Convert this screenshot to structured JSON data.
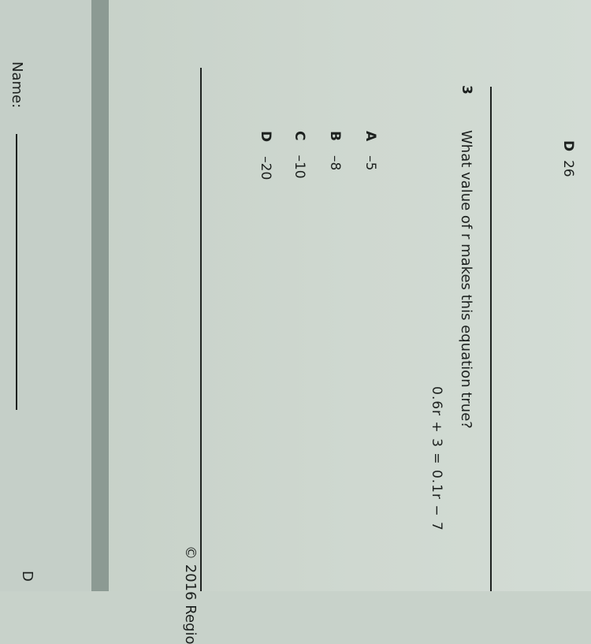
{
  "previous_question": {
    "letter": "D",
    "value": "26"
  },
  "question": {
    "number": "3",
    "text": "What value of r makes this equation true?",
    "equation": "0.6r + 3 = 0.1r − 7",
    "choices": [
      {
        "letter": "A",
        "value": "–5"
      },
      {
        "letter": "B",
        "value": "–8"
      },
      {
        "letter": "C",
        "value": "–10"
      },
      {
        "letter": "D",
        "value": "–20"
      }
    ]
  },
  "footer": {
    "copyright": "© 2016 Regio",
    "name_label": "Name:",
    "corner_letter": "D"
  }
}
